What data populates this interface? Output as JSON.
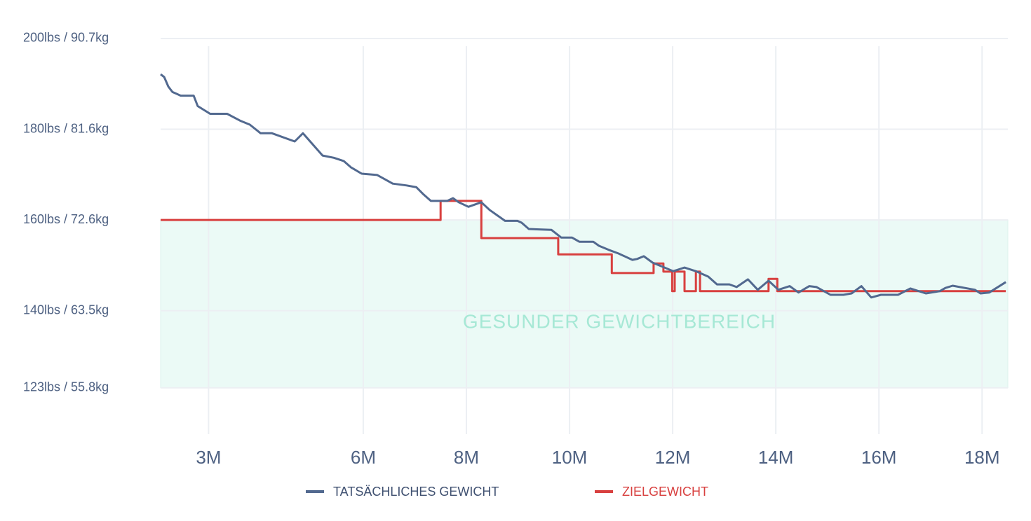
{
  "chart_data": {
    "type": "line",
    "xlim": [
      2.07,
      18.5
    ],
    "xticks": [
      {
        "value": 3,
        "label": "3M"
      },
      {
        "value": 6,
        "label": "6M"
      },
      {
        "value": 8,
        "label": "8M"
      },
      {
        "value": 10,
        "label": "10M"
      },
      {
        "value": 12,
        "label": "12M"
      },
      {
        "value": 14,
        "label": "14M"
      },
      {
        "value": 16,
        "label": "16M"
      },
      {
        "value": 18,
        "label": "18M"
      }
    ],
    "ylim": [
      112,
      202
    ],
    "yticks": [
      {
        "value": 200,
        "label": "200lbs / 90.7kg"
      },
      {
        "value": 180,
        "label": "180lbs / 81.6kg"
      },
      {
        "value": 160,
        "label": "160lbs / 72.6kg"
      },
      {
        "value": 140,
        "label": "140lbs / 63.5kg"
      },
      {
        "value": 123,
        "label": "123lbs / 55.8kg"
      }
    ],
    "grid": true,
    "band": {
      "label": "GESUNDER GEWICHTBEREICH",
      "range": [
        123,
        160
      ],
      "color": "#ebfaf6",
      "text_color": "#a6e8d5"
    },
    "legend": "bottom",
    "series": [
      {
        "name": "TATSÄCHLICHES GEWICHT",
        "color": "#52698f",
        "x": [
          2.07,
          2.14,
          2.22,
          2.3,
          2.46,
          2.71,
          2.79,
          3.03,
          3.36,
          3.61,
          3.8,
          4.01,
          4.23,
          4.67,
          4.83,
          5.21,
          5.43,
          5.62,
          5.76,
          5.97,
          6.27,
          6.57,
          6.84,
          7.03,
          7.17,
          7.31,
          7.63,
          7.74,
          7.85,
          8.04,
          8.29,
          8.45,
          8.75,
          8.99,
          9.07,
          9.21,
          9.65,
          9.84,
          10.05,
          10.19,
          10.46,
          10.57,
          10.76,
          10.95,
          11.22,
          11.31,
          11.44,
          11.61,
          11.8,
          12.01,
          12.23,
          12.45,
          12.69,
          12.86,
          13.1,
          13.24,
          13.46,
          13.65,
          13.86,
          14.05,
          14.27,
          14.44,
          14.65,
          14.79,
          15.06,
          15.31,
          15.47,
          15.66,
          15.85,
          16.04,
          16.37,
          16.61,
          16.91,
          17.18,
          17.29,
          17.43,
          17.86,
          17.97,
          18.14,
          18.46
        ],
        "values": [
          192.1,
          191.5,
          189.4,
          188.2,
          187.4,
          187.4,
          185.1,
          183.4,
          183.4,
          181.9,
          181.0,
          179.1,
          179.1,
          177.3,
          179.1,
          174.2,
          173.7,
          173.0,
          171.6,
          170.2,
          169.9,
          168.0,
          167.6,
          167.2,
          165.6,
          164.2,
          164.2,
          164.8,
          163.9,
          162.9,
          163.9,
          162.2,
          159.8,
          159.8,
          159.4,
          158.0,
          157.8,
          156.1,
          156.1,
          155.2,
          155.2,
          154.3,
          153.4,
          152.6,
          151.2,
          151.4,
          152.0,
          150.6,
          149.7,
          148.7,
          149.5,
          148.7,
          147.5,
          145.8,
          145.8,
          145.2,
          146.9,
          144.6,
          146.6,
          144.6,
          145.4,
          144.0,
          145.4,
          145.2,
          143.5,
          143.5,
          143.8,
          145.4,
          142.9,
          143.5,
          143.5,
          144.9,
          143.8,
          144.3,
          145.0,
          145.5,
          144.6,
          143.8,
          144.0,
          146.3
        ]
      },
      {
        "name": "ZIELGEWICHT",
        "color": "#d8403f",
        "x": [
          2.07,
          7.5,
          7.5,
          8.29,
          8.29,
          9.78,
          9.78,
          10.82,
          10.82,
          11.63,
          11.63,
          11.82,
          11.82,
          11.99,
          11.99,
          12.04,
          12.04,
          12.23,
          12.23,
          12.45,
          12.45,
          12.53,
          12.53,
          13.86,
          13.86,
          14.03,
          14.03,
          18.46
        ],
        "values": [
          160,
          160,
          164.2,
          164.2,
          156.0,
          156.0,
          152.4,
          152.4,
          148.3,
          148.3,
          150.4,
          150.4,
          148.6,
          148.6,
          144.3,
          144.3,
          148.6,
          148.6,
          144.3,
          144.3,
          148.6,
          148.6,
          144.3,
          144.3,
          147.0,
          147.0,
          144.3,
          144.3
        ]
      }
    ]
  }
}
